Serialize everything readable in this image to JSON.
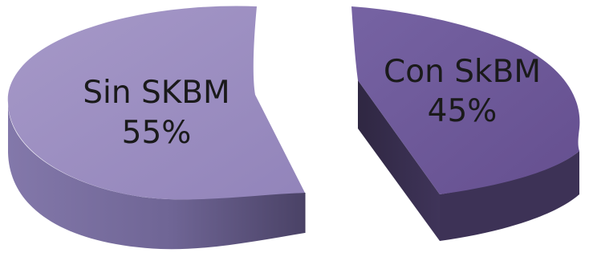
{
  "chart_data": {
    "type": "pie",
    "title": "",
    "slices": [
      {
        "label": "Sin SKBM",
        "value": 55,
        "value_label": "55%",
        "color": "#9d8fc2",
        "side_color": "#675d8a"
      },
      {
        "label": "Con SkBM",
        "value": 45,
        "value_label": "45%",
        "color": "#6c5896",
        "side_color": "#3b3053"
      }
    ],
    "style": "3d-exploded",
    "legend": "none"
  }
}
